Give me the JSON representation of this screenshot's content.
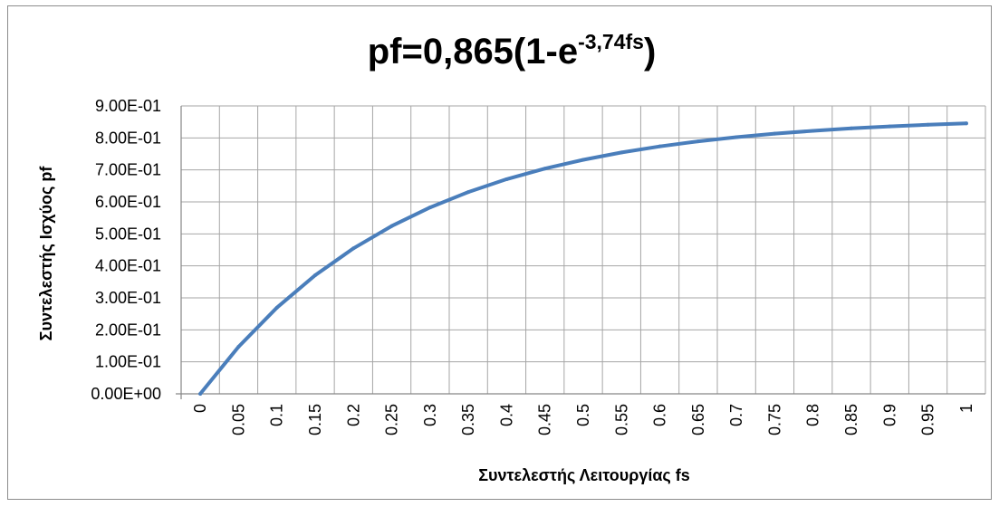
{
  "chart_data": {
    "type": "line",
    "title": {
      "main": "pf=0,865(1-e",
      "sup": "-3,74fs",
      "close": ")"
    },
    "xlabel": "Συντελεστής Λειτουργίας fs",
    "ylabel": "Συντελεστής Ισχύος pf",
    "x": [
      0,
      0.05,
      0.1,
      0.15,
      0.2,
      0.25,
      0.3,
      0.35,
      0.4,
      0.45,
      0.5,
      0.55,
      0.6,
      0.65,
      0.7,
      0.75,
      0.8,
      0.85,
      0.9,
      0.95,
      1
    ],
    "x_tick_labels": [
      "0",
      "0.05",
      "0.1",
      "0.15",
      "0.2",
      "0.25",
      "0.3",
      "0.35",
      "0.4",
      "0.45",
      "0.5",
      "0.55",
      "0.6",
      "0.65",
      "0.7",
      "0.75",
      "0.8",
      "0.85",
      "0.9",
      "0.95",
      "1"
    ],
    "series": [
      {
        "values": [
          0.0,
          0.1472,
          0.2693,
          0.3707,
          0.4549,
          0.5248,
          0.5828,
          0.6309,
          0.6709,
          0.7041,
          0.7317,
          0.7546,
          0.7736,
          0.7893,
          0.8024,
          0.8133,
          0.8223,
          0.8298,
          0.836,
          0.8412,
          0.8455
        ]
      }
    ],
    "ylim": [
      0,
      0.9
    ],
    "y_ticks": [
      0,
      0.1,
      0.2,
      0.3,
      0.4,
      0.5,
      0.6,
      0.7,
      0.8,
      0.9
    ],
    "y_tick_labels": [
      "0.00E+00",
      "1.00E-01",
      "2.00E-01",
      "3.00E-01",
      "4.00E-01",
      "5.00E-01",
      "6.00E-01",
      "7.00E-01",
      "8.00E-01",
      "9.00E-01"
    ],
    "grid": true,
    "legend": "none",
    "line_color": "#4a7ebb",
    "grid_color": "#a6a6a6"
  }
}
